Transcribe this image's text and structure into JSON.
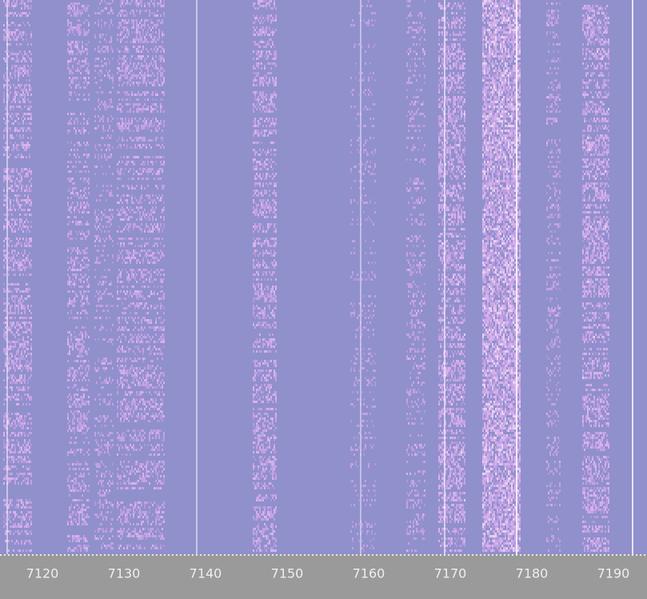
{
  "frequency_scale": {
    "labels": [
      "7120",
      "7130",
      "7140",
      "7150",
      "7160",
      "7170",
      "7180",
      "7190"
    ]
  }
}
